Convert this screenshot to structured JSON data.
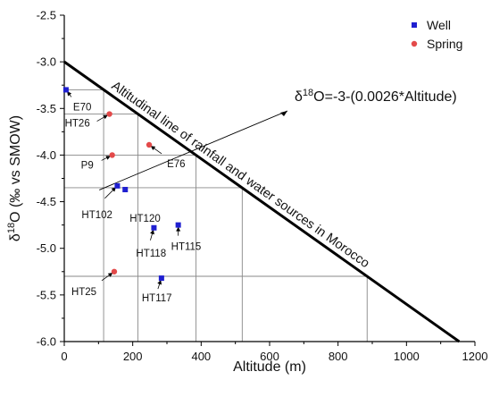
{
  "chart_data": {
    "type": "scatter",
    "xlabel": "Altitude (m)",
    "ylabel": "δ18O (‰ vs SMOW)",
    "ylabel_parts": {
      "pre": "δ",
      "sup": "18",
      "post": "O (‰ vs SMOW)"
    },
    "xlim": [
      0,
      1200
    ],
    "ylim": [
      -6.0,
      -2.5
    ],
    "x_ticks": [
      0,
      200,
      400,
      600,
      800,
      1000,
      1200
    ],
    "y_ticks": [
      -2.5,
      -3.0,
      -3.5,
      -4.0,
      -4.5,
      -5.0,
      -5.5,
      -6.0
    ],
    "y_tick_labels": [
      "-2.5",
      "-3.0",
      "-3.5",
      "-4.0",
      "-4.5",
      "-5.0",
      "-5.5",
      "-6.0"
    ],
    "grid": false,
    "legend_position": "top-right",
    "series": [
      {
        "name": "Well",
        "color": "#1f1fd0",
        "marker": "square",
        "points": [
          {
            "label": "E70",
            "x": 5,
            "y": -3.3
          },
          {
            "label": "HT102",
            "x": 155,
            "y": -4.33
          },
          {
            "label": "HT120",
            "x": 178,
            "y": -4.37
          },
          {
            "label": "HT118",
            "x": 262,
            "y": -4.78
          },
          {
            "label": "HT115",
            "x": 333,
            "y": -4.75
          },
          {
            "label": "HT117",
            "x": 284,
            "y": -5.32
          }
        ]
      },
      {
        "name": "Spring",
        "color": "#e34a4a",
        "marker": "circle",
        "points": [
          {
            "label": "HT26",
            "x": 132,
            "y": -3.56
          },
          {
            "label": "P9",
            "x": 140,
            "y": -4.0
          },
          {
            "label": "E76",
            "x": 248,
            "y": -3.89
          },
          {
            "label": "HT25",
            "x": 146,
            "y": -5.25
          }
        ]
      }
    ],
    "reference_line": {
      "label": "Altitudinal line of rainfall and water sources in Morocco",
      "x": [
        0,
        1154
      ],
      "y": [
        -3.0,
        -6.0
      ]
    },
    "equation": {
      "pre": "δ",
      "sup": "18",
      "post": "O=-3-(0.0026*Altitude)"
    },
    "projection_lines": [
      {
        "y": -3.3,
        "x_line": 115
      },
      {
        "y": -3.56,
        "x_line": 215
      },
      {
        "y": -4.0,
        "x_line": 385
      },
      {
        "y": -4.35,
        "x_line": 520
      },
      {
        "y": -5.3,
        "x_line": 885
      }
    ]
  }
}
